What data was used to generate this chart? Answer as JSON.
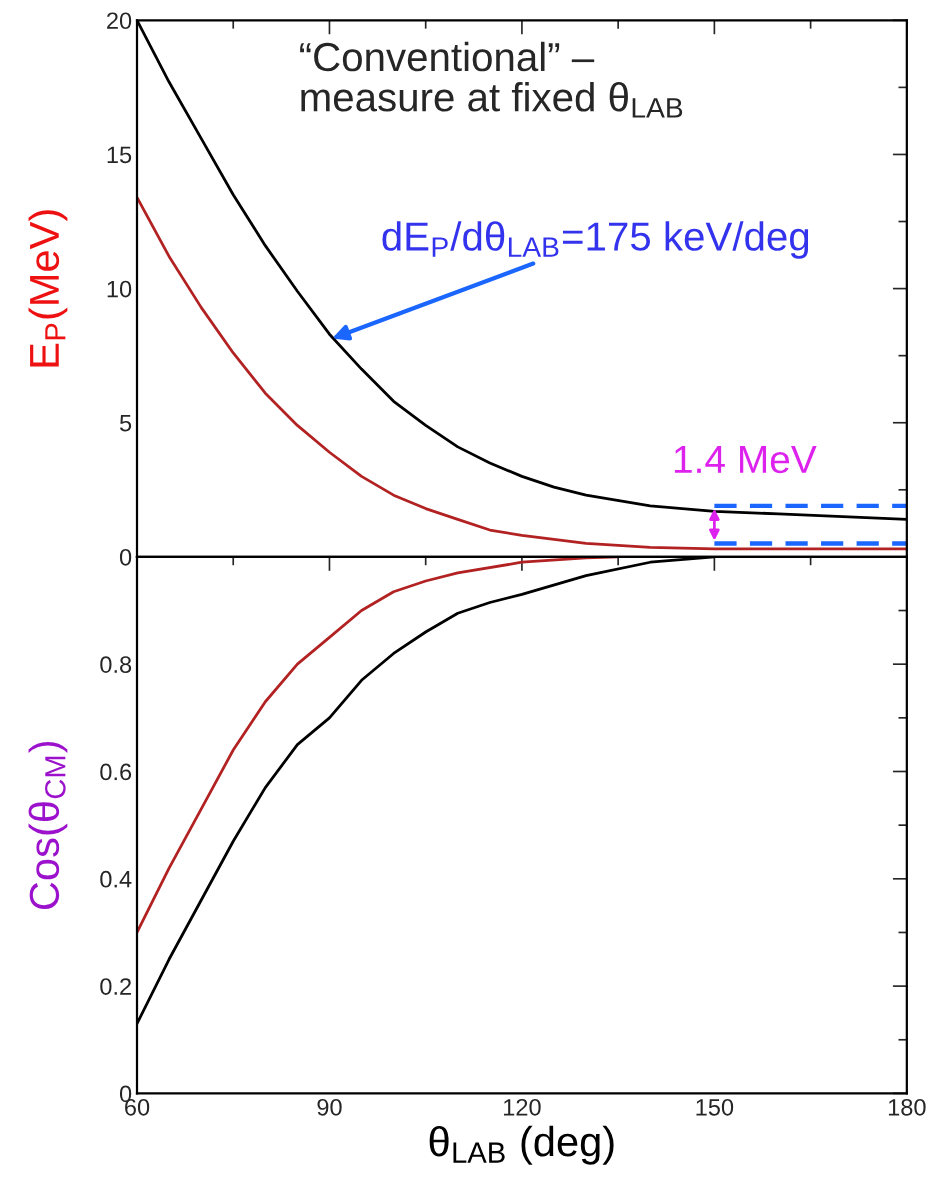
{
  "chart_data": [
    {
      "type": "line",
      "ylabel": "E$_{P}$(MeV)",
      "xlim": [
        60,
        180
      ],
      "xticks": [
        60,
        90,
        120,
        150,
        180
      ],
      "ylim": [
        0,
        20
      ],
      "yticks": [
        0,
        5,
        10,
        15,
        20
      ],
      "tick_labels": "y",
      "grid": false,
      "legend": false,
      "x": [
        60,
        65,
        70,
        75,
        80,
        85,
        90,
        95,
        100,
        105,
        110,
        115,
        120,
        125,
        130,
        140,
        150,
        160,
        170,
        180
      ],
      "series": [
        {
          "color": "#000000",
          "values": [
            20.0,
            17.7,
            15.6,
            13.5,
            11.6,
            9.9,
            8.3,
            7.0,
            5.8,
            4.9,
            4.1,
            3.5,
            3.0,
            2.6,
            2.3,
            1.9,
            1.7,
            1.6,
            1.5,
            1.4
          ]
        },
        {
          "color": "#b22222",
          "values": [
            13.4,
            11.2,
            9.3,
            7.6,
            6.1,
            4.9,
            3.9,
            3.0,
            2.3,
            1.8,
            1.4,
            1.0,
            0.8,
            0.65,
            0.5,
            0.35,
            0.3,
            0.3,
            0.3,
            0.3
          ]
        },
        {
          "color": "#1a66ff",
          "line_style": "dashed",
          "x": [
            150,
            180
          ],
          "values": [
            1.9,
            1.9
          ]
        },
        {
          "color": "#1a66ff",
          "line_style": "dashed",
          "x": [
            150,
            180
          ],
          "values": [
            0.5,
            0.5
          ]
        }
      ],
      "annotations": [
        "“Conventional” –\nmeasure at fixed θ$_{LAB}$",
        {
          "text": "dE$_{P}$/dθ$_{LAB}$=175 keV/deg",
          "x": 90,
          "y": 8.1
        },
        {
          "text": "1.4 MeV",
          "x": 150,
          "y": 1.9
        }
      ]
    },
    {
      "type": "line",
      "xlabel": "θ$_{LAB}$ (deg)",
      "ylabel": "Cos(θ$_{CM}$)",
      "xlim": [
        60,
        180
      ],
      "xticks": [
        60,
        90,
        120,
        150,
        180
      ],
      "ylim": [
        0,
        1
      ],
      "yticks": [
        0,
        0.2,
        0.4,
        0.6,
        0.8,
        {
          "value": 1,
          "label": null
        }
      ],
      "grid": false,
      "legend": false,
      "series": [
        {
          "color": "#b22222",
          "x": [
            60,
            65,
            70,
            75,
            80,
            85,
            90,
            95,
            100,
            105,
            110,
            120,
            130,
            135
          ],
          "values": [
            0.3,
            0.42,
            0.53,
            0.64,
            0.73,
            0.8,
            0.85,
            0.9,
            0.935,
            0.955,
            0.97,
            0.99,
            0.998,
            1.0
          ]
        },
        {
          "color": "#000000",
          "x": [
            60,
            65,
            70,
            75,
            80,
            85,
            90,
            95,
            100,
            105,
            110,
            115,
            120,
            130,
            140,
            150
          ],
          "values": [
            0.13,
            0.25,
            0.36,
            0.47,
            0.57,
            0.65,
            0.7,
            0.77,
            0.82,
            0.86,
            0.895,
            0.915,
            0.93,
            0.965,
            0.99,
            1.0
          ]
        }
      ]
    }
  ]
}
